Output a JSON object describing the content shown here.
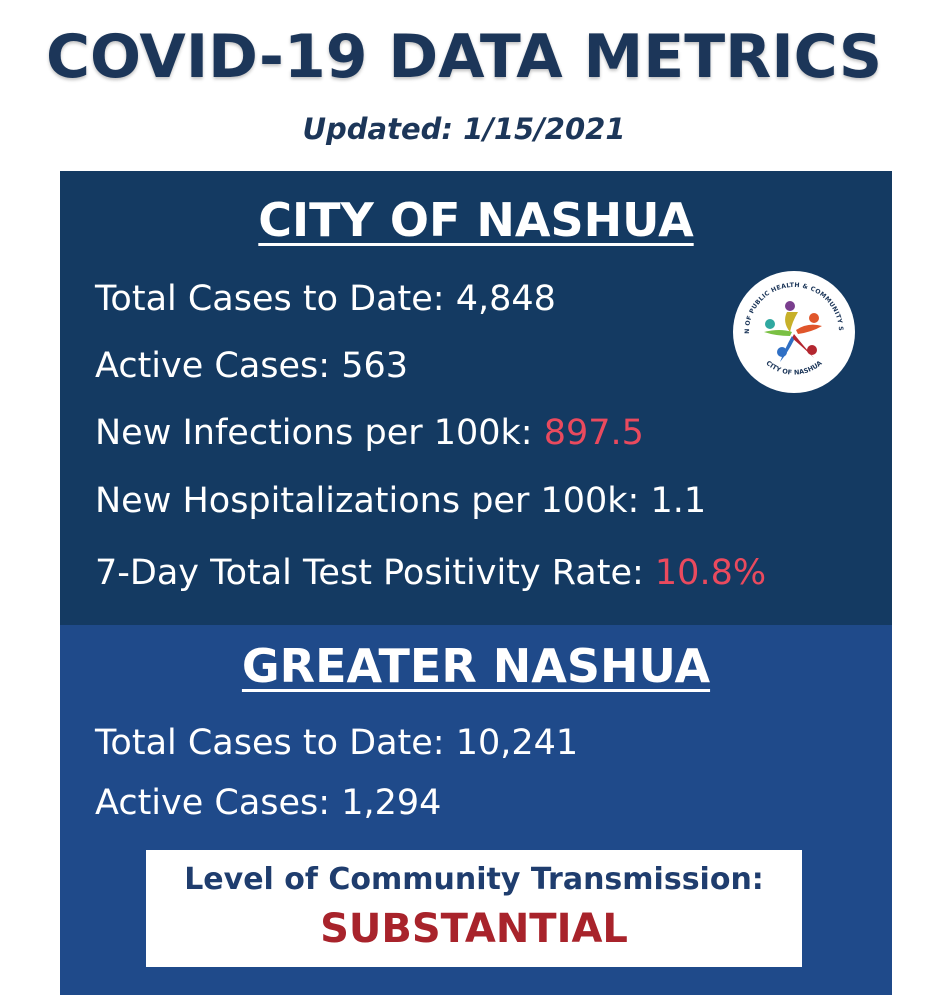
{
  "header": {
    "title": "COVID-19 DATA METRICS",
    "updated": "Updated: 1/15/2021"
  },
  "city": {
    "heading": "CITY OF NASHUA",
    "total_cases_label": "Total Cases to Date: ",
    "total_cases_value": "4,848",
    "active_cases_label": "Active Cases: ",
    "active_cases_value": "563",
    "new_infections_label": "New Infections per 100k: ",
    "new_infections_value": "897.5",
    "new_hospitalizations_label": "New Hospitalizations per 100k: ",
    "new_hospitalizations_value": "1.1",
    "positivity_label": "7-Day Total Test Positivity Rate: ",
    "positivity_value": "10.8%"
  },
  "logo": {
    "top_text": "DIVISION OF PUBLIC HEALTH & COMMUNITY SERVICES",
    "bottom_text": "CITY OF NASHUA"
  },
  "greater": {
    "heading": "GREATER NASHUA",
    "total_cases_label": "Total Cases to Date: ",
    "total_cases_value": "10,241",
    "active_cases_label": "Active Cases: ",
    "active_cases_value": "1,294"
  },
  "transmission": {
    "label": "Level of Community Transmission:",
    "value": "SUBSTANTIAL"
  },
  "colors": {
    "title_navy": "#1c3659",
    "city_panel": "#143a62",
    "greater_panel": "#1f4a8a",
    "highlight_red": "#ea4a5e",
    "substantial_red": "#a8232b"
  }
}
